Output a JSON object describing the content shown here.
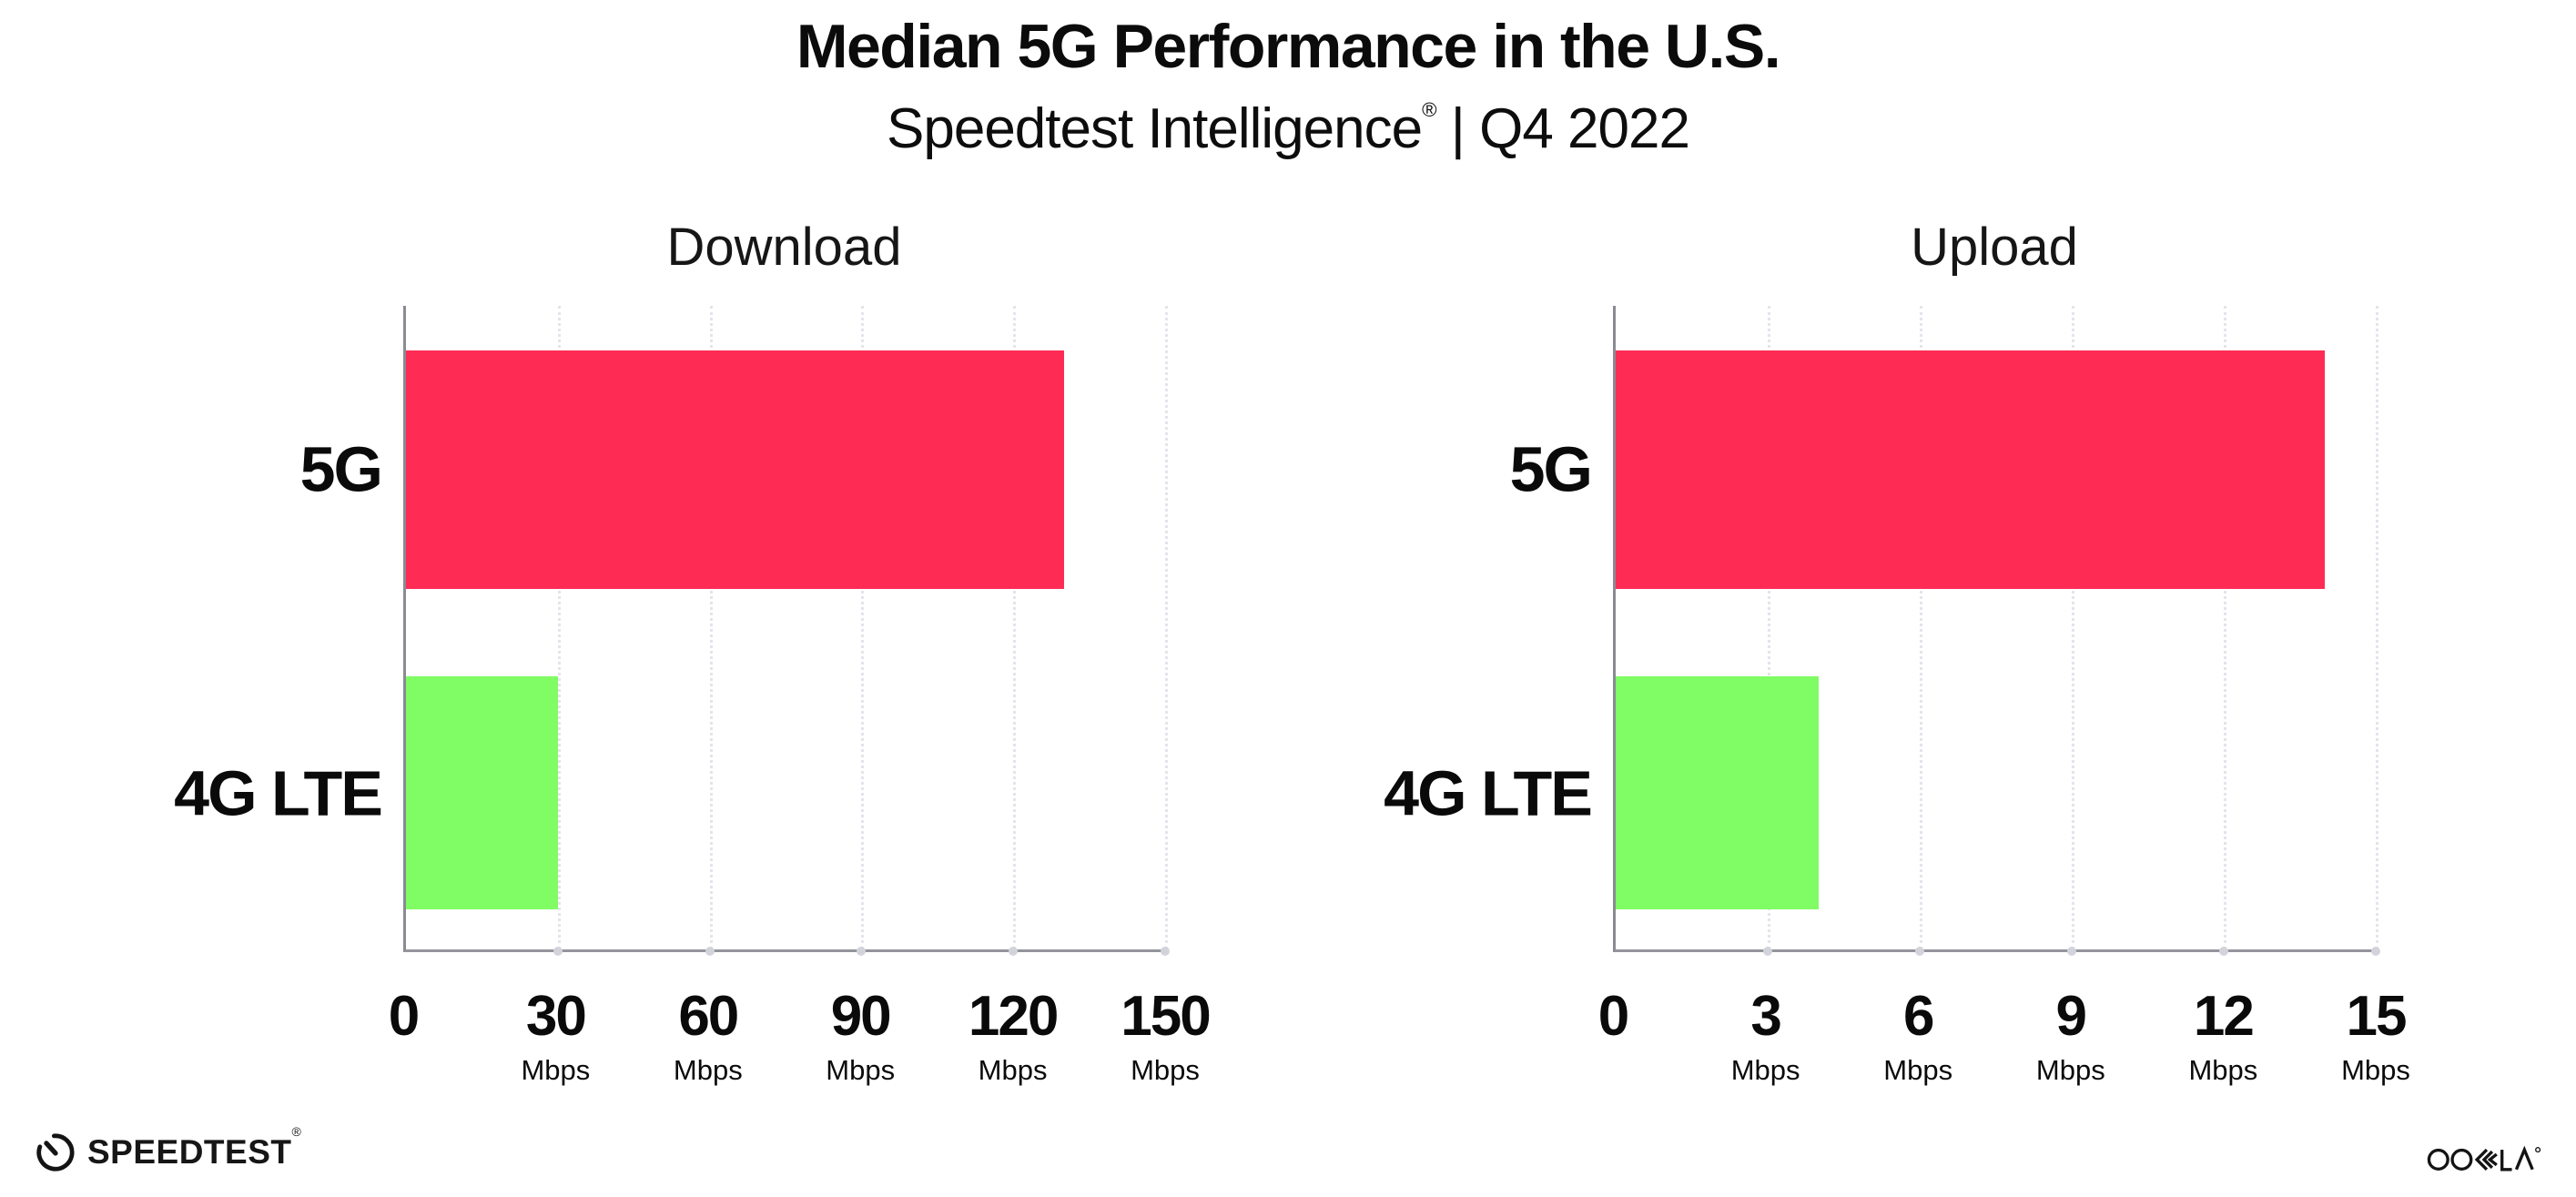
{
  "page": {
    "title": "Median 5G Performance in the U.S.",
    "subtitle_brand": "Speedtest Intelligence",
    "subtitle_reg": "®",
    "subtitle_rest": " | Q4 2022"
  },
  "colors": {
    "bar_5g": "#FE2C55",
    "bar_4g_lte": "#80FC64",
    "axis": "#94949d",
    "grid_dots": "#e4e4ec",
    "text": "#0a0a0a"
  },
  "chart_data": [
    {
      "type": "bar",
      "orientation": "horizontal",
      "title": "Download",
      "categories": [
        "5G",
        "4G LTE"
      ],
      "values": [
        130,
        30
      ],
      "unit": "Mbps",
      "xlim": [
        0,
        150
      ],
      "ticks": [
        0,
        30,
        60,
        90,
        120,
        150
      ],
      "tick_unit": "Mbps",
      "grid": "dotted-vertical",
      "legend": "none"
    },
    {
      "type": "bar",
      "orientation": "horizontal",
      "title": "Upload",
      "categories": [
        "5G",
        "4G LTE"
      ],
      "values": [
        14,
        4
      ],
      "unit": "Mbps",
      "xlim": [
        0,
        15
      ],
      "ticks": [
        0,
        3,
        6,
        9,
        12,
        15
      ],
      "tick_unit": "Mbps",
      "grid": "dotted-vertical",
      "legend": "none"
    }
  ],
  "footer": {
    "speedtest_label": "SPEEDTEST",
    "speedtest_mark": "®",
    "ookla_label": "OOKLA",
    "gauge_icon": "speedtest-gauge-icon",
    "ookla_logo": "ookla-wordmark"
  }
}
